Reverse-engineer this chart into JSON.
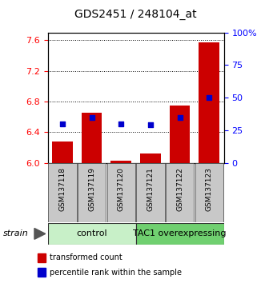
{
  "title": "GDS2451 / 248104_at",
  "samples": [
    "GSM137118",
    "GSM137119",
    "GSM137120",
    "GSM137121",
    "GSM137122",
    "GSM137123"
  ],
  "transformed_counts": [
    6.28,
    6.65,
    6.03,
    6.12,
    6.75,
    7.57
  ],
  "percentile_ranks": [
    30,
    35,
    30,
    29,
    35,
    50
  ],
  "baseline": 6.0,
  "ylim_left": [
    6.0,
    7.7
  ],
  "ylim_right": [
    0,
    100
  ],
  "yticks_left": [
    6.0,
    6.4,
    6.8,
    7.2,
    7.6
  ],
  "yticks_right": [
    0,
    25,
    50,
    75,
    100
  ],
  "bar_color": "#cc0000",
  "dot_color": "#0000cc",
  "bar_width": 0.7,
  "dot_size": 25,
  "background_color": "#ffffff",
  "plot_bg_color": "#ffffff",
  "sample_box_color": "#c8c8c8",
  "control_color": "#c8f0c8",
  "tac1_color": "#70d070",
  "legend_red_label": "transformed count",
  "legend_blue_label": "percentile rank within the sample",
  "title_fontsize": 10,
  "tick_fontsize": 8,
  "sample_fontsize": 6.5,
  "group_label_fontsize": 8,
  "legend_fontsize": 7
}
